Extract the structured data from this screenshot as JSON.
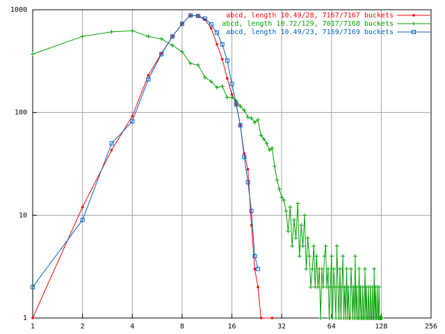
{
  "chart_data": {
    "type": "line",
    "xscale": "log",
    "yscale": "log",
    "grid": true,
    "legend": "top-right",
    "xlim": [
      1,
      256
    ],
    "ylim": [
      1,
      1000
    ],
    "xticks": [
      1,
      2,
      4,
      8,
      16,
      32,
      64,
      128,
      256
    ],
    "yticks": [
      1,
      10,
      100,
      1000
    ],
    "series": [
      {
        "name": "abcd, length 10.49/28, 7167/7167 buckets",
        "color": "#ff0000",
        "marker": "dot",
        "x": [
          1,
          2,
          3,
          4,
          5,
          6,
          7,
          8,
          9,
          10,
          11,
          12,
          13,
          14,
          15,
          16,
          17,
          18,
          19,
          20,
          21,
          22,
          23,
          24,
          28
        ],
        "values": [
          1,
          12,
          43,
          92,
          230,
          375,
          550,
          730,
          880,
          870,
          800,
          660,
          460,
          330,
          215,
          150,
          120,
          75,
          40,
          28,
          8,
          3,
          2,
          1,
          1
        ]
      },
      {
        "name": "abcd, length 10.72/129, 7017/7168 buckets",
        "color": "#00a000",
        "marker": "plus",
        "x": [
          1,
          2,
          3,
          4,
          5,
          6,
          7,
          8,
          9,
          10,
          11,
          12,
          13,
          14,
          15,
          16,
          17,
          18,
          19,
          20,
          21,
          22,
          23,
          24,
          25,
          26,
          27,
          28,
          29,
          30,
          31,
          32,
          33,
          34,
          35,
          36,
          37,
          38,
          39,
          40,
          41,
          42,
          43,
          44,
          45,
          46,
          47,
          48,
          49,
          50,
          51,
          52,
          53,
          54,
          55,
          56,
          57,
          58,
          59,
          60,
          61,
          62,
          63,
          64,
          65,
          66,
          67,
          68,
          69,
          70,
          71,
          72,
          73,
          74,
          75,
          76,
          77,
          78,
          79,
          80,
          81,
          82,
          83,
          84,
          85,
          86,
          87,
          88,
          89,
          90,
          91,
          92,
          93,
          94,
          95,
          96,
          97,
          98,
          99,
          100,
          101,
          102,
          103,
          104,
          105,
          106,
          107,
          108,
          109,
          110,
          111,
          112,
          113,
          114,
          115,
          116,
          117,
          118,
          119,
          120,
          121,
          122,
          123,
          124,
          125,
          126,
          127,
          128,
          129
        ],
        "values": [
          370,
          550,
          610,
          625,
          550,
          520,
          450,
          390,
          300,
          290,
          220,
          200,
          175,
          180,
          140,
          140,
          130,
          115,
          105,
          90,
          88,
          80,
          85,
          60,
          55,
          50,
          43,
          45,
          30,
          22,
          18,
          15,
          14,
          11,
          7,
          12,
          5,
          9,
          6,
          13,
          4,
          8,
          5,
          10,
          3,
          6,
          4,
          2,
          3,
          5,
          2,
          4,
          2,
          3,
          1,
          3,
          2,
          4,
          5,
          2,
          3,
          1,
          2,
          4,
          1,
          3,
          2,
          1,
          5,
          2,
          1,
          3,
          1,
          2,
          4,
          1,
          2,
          1,
          3,
          1,
          2,
          1,
          1,
          3,
          2,
          1,
          2,
          1,
          4,
          1,
          2,
          1,
          1,
          3,
          1,
          2,
          1,
          1,
          2,
          1,
          1,
          3,
          1,
          2,
          1,
          1,
          2,
          1,
          1,
          2,
          1,
          1,
          2,
          1,
          1,
          3,
          1,
          2,
          1,
          1,
          2,
          1,
          1,
          2,
          1,
          1,
          1,
          1,
          1
        ]
      },
      {
        "name": "abcd, length 10.49/23, 7169/7169 buckets",
        "color": "#0060c0",
        "marker": "square",
        "x": [
          1,
          2,
          3,
          4,
          5,
          6,
          7,
          8,
          9,
          10,
          11,
          12,
          13,
          14,
          15,
          16,
          17,
          18,
          19,
          20,
          21,
          22,
          23
        ],
        "values": [
          2,
          9,
          50,
          82,
          210,
          370,
          550,
          730,
          880,
          870,
          820,
          720,
          600,
          460,
          320,
          190,
          120,
          75,
          37,
          21,
          11,
          4,
          3
        ]
      }
    ]
  }
}
